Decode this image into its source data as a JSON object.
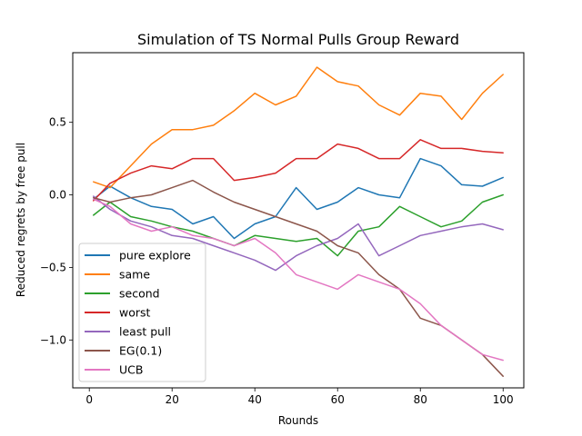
{
  "chart_data": {
    "type": "line",
    "title": "Simulation of TS Normal Pulls Group Reward",
    "xlabel": "Rounds",
    "ylabel": "Reduced regrets by free pull",
    "xlim": [
      -4,
      105
    ],
    "ylim": [
      -1.33,
      0.98
    ],
    "x_ticks": [
      0,
      20,
      40,
      60,
      80,
      100
    ],
    "x_tick_labels": [
      "0",
      "20",
      "40",
      "60",
      "80",
      "100"
    ],
    "y_ticks": [
      0.5,
      0.0,
      -0.5,
      -1.0
    ],
    "y_tick_labels": [
      "0.5",
      "0.0",
      "−0.5",
      "−1.0"
    ],
    "legend_position": "lower-left",
    "grid": false,
    "series": [
      {
        "name": "pure explore",
        "color": "#1f77b4",
        "x": [
          1,
          5,
          10,
          15,
          20,
          25,
          30,
          35,
          40,
          45,
          50,
          55,
          60,
          65,
          70,
          75,
          80,
          85,
          90,
          95,
          100
        ],
        "y": [
          -0.03,
          0.06,
          -0.02,
          -0.08,
          -0.1,
          -0.2,
          -0.15,
          -0.3,
          -0.2,
          -0.15,
          0.05,
          -0.1,
          -0.05,
          0.05,
          0.0,
          -0.02,
          0.25,
          0.2,
          0.07,
          0.06,
          0.12
        ]
      },
      {
        "name": "same",
        "color": "#ff7f0e",
        "x": [
          1,
          5,
          10,
          15,
          20,
          25,
          30,
          35,
          40,
          45,
          50,
          55,
          60,
          65,
          70,
          75,
          80,
          85,
          90,
          95,
          100
        ],
        "y": [
          0.09,
          0.05,
          0.2,
          0.35,
          0.45,
          0.45,
          0.48,
          0.58,
          0.7,
          0.62,
          0.68,
          0.88,
          0.78,
          0.75,
          0.62,
          0.55,
          0.7,
          0.68,
          0.52,
          0.7,
          0.83
        ]
      },
      {
        "name": "second",
        "color": "#2ca02c",
        "x": [
          1,
          5,
          10,
          15,
          20,
          25,
          30,
          35,
          40,
          45,
          50,
          55,
          60,
          65,
          70,
          75,
          80,
          85,
          90,
          95,
          100
        ],
        "y": [
          -0.14,
          -0.05,
          -0.15,
          -0.18,
          -0.22,
          -0.25,
          -0.3,
          -0.35,
          -0.28,
          -0.3,
          -0.32,
          -0.3,
          -0.42,
          -0.25,
          -0.22,
          -0.08,
          -0.15,
          -0.22,
          -0.18,
          -0.05,
          0.0
        ]
      },
      {
        "name": "worst",
        "color": "#d62728",
        "x": [
          1,
          5,
          10,
          15,
          20,
          25,
          30,
          35,
          40,
          45,
          50,
          55,
          60,
          65,
          70,
          75,
          80,
          85,
          90,
          95,
          100
        ],
        "y": [
          -0.04,
          0.08,
          0.15,
          0.2,
          0.18,
          0.25,
          0.25,
          0.1,
          0.12,
          0.15,
          0.25,
          0.25,
          0.35,
          0.32,
          0.25,
          0.25,
          0.38,
          0.32,
          0.32,
          0.3,
          0.29
        ]
      },
      {
        "name": "least pull",
        "color": "#9467bd",
        "x": [
          1,
          5,
          10,
          15,
          20,
          25,
          30,
          35,
          40,
          45,
          50,
          55,
          60,
          65,
          70,
          75,
          80,
          85,
          90,
          95,
          100
        ],
        "y": [
          -0.01,
          -0.1,
          -0.18,
          -0.22,
          -0.28,
          -0.3,
          -0.35,
          -0.4,
          -0.45,
          -0.52,
          -0.42,
          -0.35,
          -0.3,
          -0.2,
          -0.42,
          -0.35,
          -0.28,
          -0.25,
          -0.22,
          -0.2,
          -0.24
        ]
      },
      {
        "name": "EG(0.1)",
        "color": "#8c564b",
        "x": [
          1,
          5,
          10,
          15,
          20,
          25,
          30,
          35,
          40,
          45,
          50,
          55,
          60,
          65,
          70,
          75,
          80,
          85,
          90,
          95,
          100
        ],
        "y": [
          -0.02,
          -0.05,
          -0.02,
          0.0,
          0.05,
          0.1,
          0.02,
          -0.05,
          -0.1,
          -0.15,
          -0.2,
          -0.25,
          -0.35,
          -0.4,
          -0.55,
          -0.65,
          -0.85,
          -0.9,
          -1.0,
          -1.1,
          -1.25
        ]
      },
      {
        "name": "UCB",
        "color": "#e377c2",
        "x": [
          1,
          5,
          10,
          15,
          20,
          25,
          30,
          35,
          40,
          45,
          50,
          55,
          60,
          65,
          70,
          75,
          80,
          85,
          90,
          95,
          100
        ],
        "y": [
          -0.03,
          -0.08,
          -0.2,
          -0.25,
          -0.22,
          -0.28,
          -0.3,
          -0.35,
          -0.3,
          -0.4,
          -0.55,
          -0.6,
          -0.65,
          -0.55,
          -0.6,
          -0.65,
          -0.75,
          -0.9,
          -1.0,
          -1.1,
          -1.14
        ]
      }
    ]
  }
}
